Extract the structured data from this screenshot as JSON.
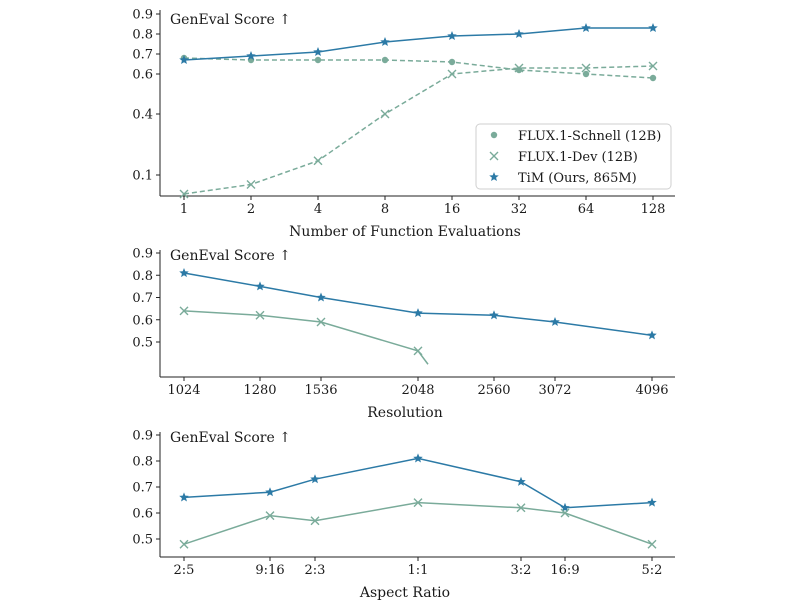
{
  "colors": {
    "tim": "#2c7aa6",
    "flux": "#7aab9a",
    "axis": "#222222"
  },
  "chart_data": [
    {
      "type": "line",
      "title": "",
      "score_label": "GenEval Score ↑",
      "xlabel": "Number of Function Evaluations",
      "ylabel": "",
      "x_scale": "log2",
      "y_scale": "nonlinear",
      "categories": [
        "1",
        "2",
        "4",
        "8",
        "16",
        "32",
        "64",
        "128"
      ],
      "yticks": [
        "0.1",
        "0.4",
        "0.6",
        "0.7",
        "0.8",
        "0.9"
      ],
      "legend_position": "lower-right",
      "series": [
        {
          "name": "FLUX.1-Schnell (12B)",
          "marker": "circle",
          "style": "dashed",
          "values": [
            0.68,
            0.67,
            0.67,
            0.67,
            0.66,
            0.62,
            0.6,
            0.58
          ]
        },
        {
          "name": "FLUX.1-Dev (12B)",
          "marker": "x",
          "style": "dashed",
          "values": [
            0.0,
            0.05,
            0.17,
            0.4,
            0.6,
            0.63,
            0.63,
            0.64
          ]
        },
        {
          "name": "TiM (Ours, 865M)",
          "marker": "star",
          "style": "solid",
          "values": [
            0.67,
            0.69,
            0.71,
            0.76,
            0.79,
            0.8,
            0.83,
            0.83
          ]
        }
      ]
    },
    {
      "type": "line",
      "score_label": "GenEval Score ↑",
      "xlabel": "Resolution",
      "categories": [
        "1024",
        "1280",
        "1536",
        "2048",
        "2560",
        "3072",
        "4096"
      ],
      "yticks": [
        "0.5",
        "0.6",
        "0.7",
        "0.8",
        "0.9"
      ],
      "ylim": [
        0.4,
        0.9
      ],
      "series": [
        {
          "name": "TiM (Ours, 865M)",
          "marker": "star",
          "values": [
            0.81,
            0.75,
            0.7,
            0.63,
            0.62,
            0.59,
            0.53
          ]
        },
        {
          "name": "FLUX.1-Dev (12B)",
          "marker": "x",
          "values": [
            0.64,
            0.62,
            0.59,
            0.46,
            null,
            null,
            null
          ],
          "tail_to": 0.4
        }
      ]
    },
    {
      "type": "line",
      "score_label": "GenEval Score ↑",
      "xlabel": "Aspect Ratio",
      "categories": [
        "2:5",
        "9:16",
        "2:3",
        "1:1",
        "3:2",
        "16:9",
        "5:2"
      ],
      "yticks": [
        "0.5",
        "0.6",
        "0.7",
        "0.8",
        "0.9"
      ],
      "ylim": [
        0.47,
        0.9
      ],
      "series": [
        {
          "name": "TiM (Ours, 865M)",
          "marker": "star",
          "values": [
            0.66,
            0.68,
            0.73,
            0.81,
            0.72,
            0.62,
            0.64
          ]
        },
        {
          "name": "FLUX.1-Dev (12B)",
          "marker": "x",
          "values": [
            0.48,
            0.59,
            0.57,
            0.64,
            0.62,
            0.6,
            0.48
          ]
        }
      ]
    }
  ]
}
